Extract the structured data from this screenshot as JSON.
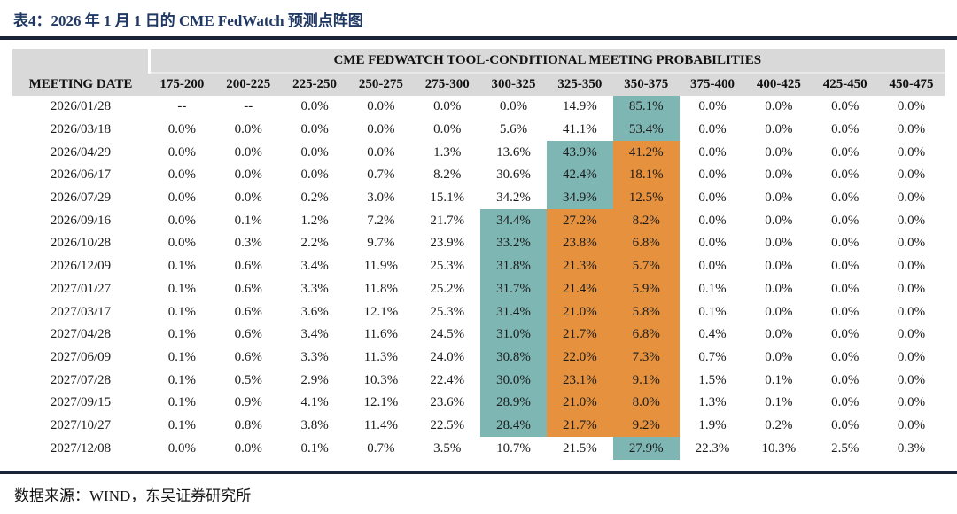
{
  "title": "表4：2026 年 1 月 1 日的 CME FedWatch 预测点阵图",
  "footer": "数据来源：WIND，东吴证券研究所",
  "colors": {
    "teal": "#7EB6B4",
    "orange": "#E5913E",
    "header_bg": "#D9D9D9",
    "rule": "#1A2338",
    "title": "#1F3864"
  },
  "table": {
    "banner": "CME FEDWATCH TOOL-CONDITIONAL MEETING PROBABILITIES",
    "date_header": "MEETING DATE",
    "range_headers": [
      "175-200",
      "200-225",
      "225-250",
      "250-275",
      "275-300",
      "300-325",
      "325-350",
      "350-375",
      "375-400",
      "400-425",
      "425-450",
      "450-475"
    ],
    "rows": [
      {
        "date": "2026/01/28",
        "values": [
          "--",
          "--",
          "0.0%",
          "0.0%",
          "0.0%",
          "0.0%",
          "14.9%",
          "85.1%",
          "0.0%",
          "0.0%",
          "0.0%",
          "0.0%"
        ],
        "hl": [
          "",
          "",
          "",
          "",
          "",
          "",
          "",
          "teal",
          "",
          "",
          "",
          ""
        ]
      },
      {
        "date": "2026/03/18",
        "values": [
          "0.0%",
          "0.0%",
          "0.0%",
          "0.0%",
          "0.0%",
          "5.6%",
          "41.1%",
          "53.4%",
          "0.0%",
          "0.0%",
          "0.0%",
          "0.0%"
        ],
        "hl": [
          "",
          "",
          "",
          "",
          "",
          "",
          "",
          "teal",
          "",
          "",
          "",
          ""
        ]
      },
      {
        "date": "2026/04/29",
        "values": [
          "0.0%",
          "0.0%",
          "0.0%",
          "0.0%",
          "1.3%",
          "13.6%",
          "43.9%",
          "41.2%",
          "0.0%",
          "0.0%",
          "0.0%",
          "0.0%"
        ],
        "hl": [
          "",
          "",
          "",
          "",
          "",
          "",
          "teal",
          "orange",
          "",
          "",
          "",
          ""
        ]
      },
      {
        "date": "2026/06/17",
        "values": [
          "0.0%",
          "0.0%",
          "0.0%",
          "0.7%",
          "8.2%",
          "30.6%",
          "42.4%",
          "18.1%",
          "0.0%",
          "0.0%",
          "0.0%",
          "0.0%"
        ],
        "hl": [
          "",
          "",
          "",
          "",
          "",
          "",
          "teal",
          "orange",
          "",
          "",
          "",
          ""
        ]
      },
      {
        "date": "2026/07/29",
        "values": [
          "0.0%",
          "0.0%",
          "0.2%",
          "3.0%",
          "15.1%",
          "34.2%",
          "34.9%",
          "12.5%",
          "0.0%",
          "0.0%",
          "0.0%",
          "0.0%"
        ],
        "hl": [
          "",
          "",
          "",
          "",
          "",
          "",
          "teal",
          "orange",
          "",
          "",
          "",
          ""
        ]
      },
      {
        "date": "2026/09/16",
        "values": [
          "0.0%",
          "0.1%",
          "1.2%",
          "7.2%",
          "21.7%",
          "34.4%",
          "27.2%",
          "8.2%",
          "0.0%",
          "0.0%",
          "0.0%",
          "0.0%"
        ],
        "hl": [
          "",
          "",
          "",
          "",
          "",
          "teal",
          "orange",
          "orange",
          "",
          "",
          "",
          ""
        ]
      },
      {
        "date": "2026/10/28",
        "values": [
          "0.0%",
          "0.3%",
          "2.2%",
          "9.7%",
          "23.9%",
          "33.2%",
          "23.8%",
          "6.8%",
          "0.0%",
          "0.0%",
          "0.0%",
          "0.0%"
        ],
        "hl": [
          "",
          "",
          "",
          "",
          "",
          "teal",
          "orange",
          "orange",
          "",
          "",
          "",
          ""
        ]
      },
      {
        "date": "2026/12/09",
        "values": [
          "0.1%",
          "0.6%",
          "3.4%",
          "11.9%",
          "25.3%",
          "31.8%",
          "21.3%",
          "5.7%",
          "0.0%",
          "0.0%",
          "0.0%",
          "0.0%"
        ],
        "hl": [
          "",
          "",
          "",
          "",
          "",
          "teal",
          "orange",
          "orange",
          "",
          "",
          "",
          ""
        ]
      },
      {
        "date": "2027/01/27",
        "values": [
          "0.1%",
          "0.6%",
          "3.3%",
          "11.8%",
          "25.2%",
          "31.7%",
          "21.4%",
          "5.9%",
          "0.1%",
          "0.0%",
          "0.0%",
          "0.0%"
        ],
        "hl": [
          "",
          "",
          "",
          "",
          "",
          "teal",
          "orange",
          "orange",
          "",
          "",
          "",
          ""
        ]
      },
      {
        "date": "2027/03/17",
        "values": [
          "0.1%",
          "0.6%",
          "3.6%",
          "12.1%",
          "25.3%",
          "31.4%",
          "21.0%",
          "5.8%",
          "0.1%",
          "0.0%",
          "0.0%",
          "0.0%"
        ],
        "hl": [
          "",
          "",
          "",
          "",
          "",
          "teal",
          "orange",
          "orange",
          "",
          "",
          "",
          ""
        ]
      },
      {
        "date": "2027/04/28",
        "values": [
          "0.1%",
          "0.6%",
          "3.4%",
          "11.6%",
          "24.5%",
          "31.0%",
          "21.7%",
          "6.8%",
          "0.4%",
          "0.0%",
          "0.0%",
          "0.0%"
        ],
        "hl": [
          "",
          "",
          "",
          "",
          "",
          "teal",
          "orange",
          "orange",
          "",
          "",
          "",
          ""
        ]
      },
      {
        "date": "2027/06/09",
        "values": [
          "0.1%",
          "0.6%",
          "3.3%",
          "11.3%",
          "24.0%",
          "30.8%",
          "22.0%",
          "7.3%",
          "0.7%",
          "0.0%",
          "0.0%",
          "0.0%"
        ],
        "hl": [
          "",
          "",
          "",
          "",
          "",
          "teal",
          "orange",
          "orange",
          "",
          "",
          "",
          ""
        ]
      },
      {
        "date": "2027/07/28",
        "values": [
          "0.1%",
          "0.5%",
          "2.9%",
          "10.3%",
          "22.4%",
          "30.0%",
          "23.1%",
          "9.1%",
          "1.5%",
          "0.1%",
          "0.0%",
          "0.0%"
        ],
        "hl": [
          "",
          "",
          "",
          "",
          "",
          "teal",
          "orange",
          "orange",
          "",
          "",
          "",
          ""
        ]
      },
      {
        "date": "2027/09/15",
        "values": [
          "0.1%",
          "0.9%",
          "4.1%",
          "12.1%",
          "23.6%",
          "28.9%",
          "21.0%",
          "8.0%",
          "1.3%",
          "0.1%",
          "0.0%",
          "0.0%"
        ],
        "hl": [
          "",
          "",
          "",
          "",
          "",
          "teal",
          "orange",
          "orange",
          "",
          "",
          "",
          ""
        ]
      },
      {
        "date": "2027/10/27",
        "values": [
          "0.1%",
          "0.8%",
          "3.8%",
          "11.4%",
          "22.5%",
          "28.4%",
          "21.7%",
          "9.2%",
          "1.9%",
          "0.2%",
          "0.0%",
          "0.0%"
        ],
        "hl": [
          "",
          "",
          "",
          "",
          "",
          "teal",
          "orange",
          "orange",
          "",
          "",
          "",
          ""
        ]
      },
      {
        "date": "2027/12/08",
        "values": [
          "0.0%",
          "0.0%",
          "0.1%",
          "0.7%",
          "3.5%",
          "10.7%",
          "21.5%",
          "27.9%",
          "22.3%",
          "10.3%",
          "2.5%",
          "0.3%"
        ],
        "hl": [
          "",
          "",
          "",
          "",
          "",
          "",
          "",
          "teal",
          "",
          "",
          "",
          ""
        ]
      }
    ]
  }
}
